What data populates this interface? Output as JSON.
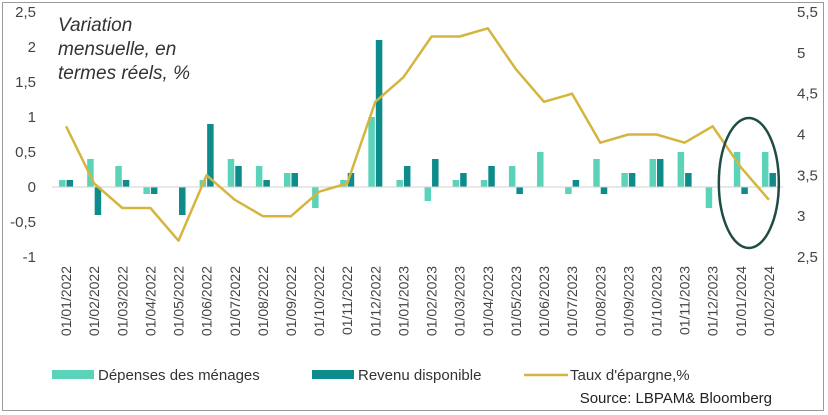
{
  "chart_data": {
    "type": "bar",
    "title_lines": [
      "Variation",
      "mensuelle, en",
      "termes réels, %"
    ],
    "categories": [
      "01/01/2022",
      "01/02/2022",
      "01/03/2022",
      "01/04/2022",
      "01/05/2022",
      "01/06/2022",
      "01/07/2022",
      "01/08/2022",
      "01/09/2022",
      "01/10/2022",
      "01/11/2022",
      "01/12/2022",
      "01/01/2023",
      "01/02/2023",
      "01/03/2023",
      "01/04/2023",
      "01/05/2023",
      "01/06/2023",
      "01/07/2023",
      "01/08/2023",
      "01/09/2023",
      "01/10/2023",
      "01/11/2023",
      "01/12/2023",
      "01/01/2024",
      "01/02/2024"
    ],
    "series": [
      {
        "name": "Dépenses des ménages",
        "type": "bar",
        "axis": "left",
        "color": "#5BD3B9",
        "values": [
          0.1,
          0.4,
          0.3,
          -0.1,
          0.0,
          0.1,
          0.4,
          0.3,
          0.2,
          -0.3,
          0.1,
          1.0,
          0.1,
          -0.2,
          0.1,
          0.1,
          0.3,
          0.5,
          -0.1,
          0.4,
          0.2,
          0.4,
          0.5,
          -0.3,
          0.5,
          0.5
        ]
      },
      {
        "name": "Revenu disponible",
        "type": "bar",
        "axis": "left",
        "color": "#0E8C8C",
        "values": [
          0.1,
          -0.4,
          0.1,
          -0.1,
          -0.4,
          0.9,
          0.3,
          0.1,
          0.2,
          0.0,
          0.2,
          2.1,
          0.3,
          0.4,
          0.2,
          0.3,
          -0.1,
          0.0,
          0.1,
          -0.1,
          0.2,
          0.4,
          0.2,
          0.0,
          -0.1,
          0.2
        ]
      },
      {
        "name": "Taux d'épargne,%",
        "type": "line",
        "axis": "right",
        "color": "#D4B63F",
        "values": [
          4.1,
          3.4,
          3.1,
          3.1,
          2.7,
          3.5,
          3.2,
          3.0,
          3.0,
          3.3,
          3.4,
          4.4,
          4.7,
          5.2,
          5.2,
          5.3,
          4.8,
          4.4,
          4.5,
          3.9,
          4.0,
          4.0,
          3.9,
          4.1,
          3.6,
          3.2
        ]
      }
    ],
    "y_left": {
      "ticks": [
        "-1",
        "-0,5",
        "0",
        "0,5",
        "1",
        "1,5",
        "2",
        "2,5"
      ],
      "ylim": [
        -1,
        2.5
      ]
    },
    "y_right": {
      "ticks": [
        "2,5",
        "3",
        "3,5",
        "4",
        "4,5",
        "5",
        "5,5"
      ],
      "ylim": [
        2.5,
        5.5
      ]
    },
    "legend_position": "bottom",
    "grid": false,
    "annotation": "ellipse highlighting the last two months",
    "source": "Source: LBPAM& Bloomberg"
  }
}
